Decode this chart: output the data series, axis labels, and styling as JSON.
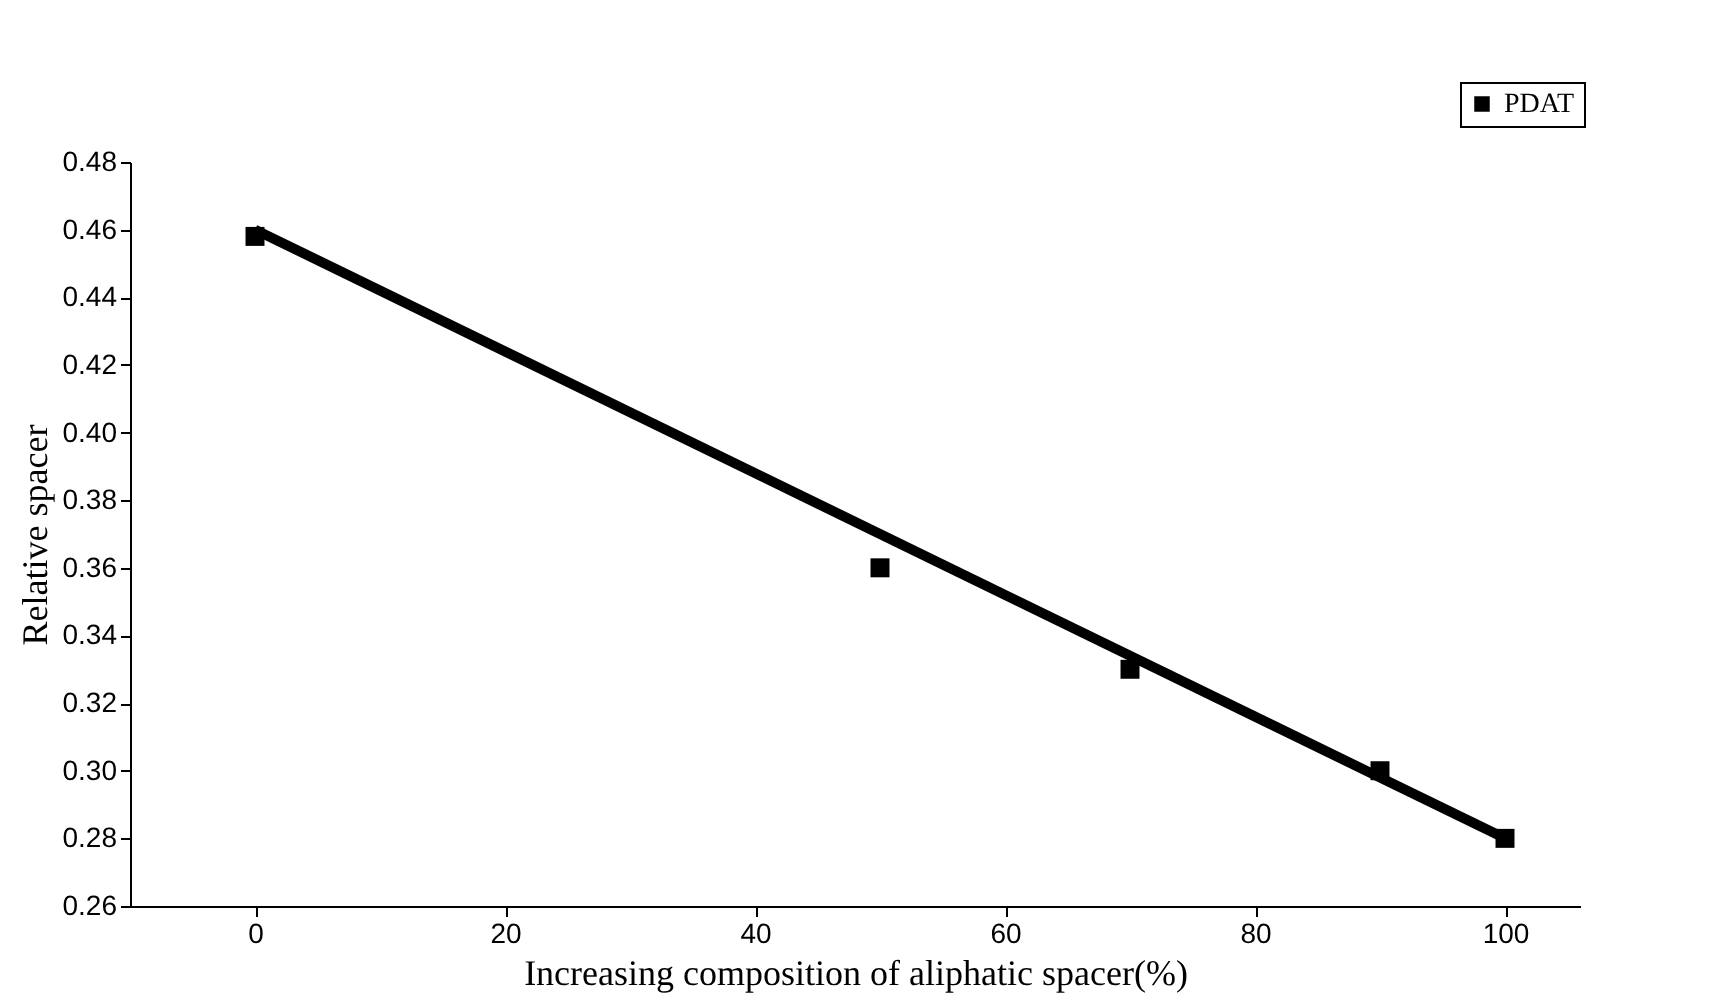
{
  "chart_data": {
    "type": "scatter",
    "xlabel": "Increasing composition of aliphatic spacer(%)",
    "ylabel": "Relative spacer",
    "x": [
      0,
      50,
      70,
      90,
      100
    ],
    "series": [
      {
        "name": "PDAT",
        "color": "#000000",
        "values": [
          0.458,
          0.36,
          0.33,
          0.3,
          0.28
        ],
        "marker": "square"
      },
      {
        "type": "line",
        "color": "#000000",
        "x": [
          0,
          100
        ],
        "values": [
          0.46,
          0.28
        ]
      }
    ],
    "xlim": [
      -10,
      106
    ],
    "xticks": [
      0,
      20,
      40,
      60,
      80,
      100
    ],
    "ylim": [
      0.26,
      0.48
    ],
    "yticks": [
      0.26,
      0.28,
      {
        "value": 0.3,
        "label": "0.30"
      },
      0.32,
      0.34,
      0.36,
      0.38,
      {
        "value": 0.4,
        "label": "0.40"
      },
      0.42,
      0.44,
      0.46,
      0.48
    ],
    "grid": false,
    "legend": "top right"
  }
}
